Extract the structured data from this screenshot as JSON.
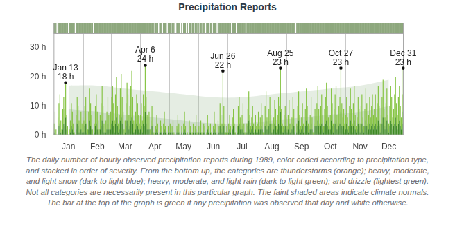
{
  "chart_data": {
    "type": "bar",
    "title": "Precipitation Reports",
    "caption": "The daily number of hourly observed precipitation reports during 1989, color coded according to precipitation type, and stacked in order of severity. From the bottom up, the categories are thunderstorms (orange); heavy, moderate, and light snow (dark to light blue); heavy, moderate, and light rain (dark to light green); and drizzle (lightest green). Not all categories are necessarily present in this particular graph. The faint shaded areas indicate climate normals. The bar at the top of the graph is green if any precipitation was observed that day and white otherwise.",
    "categories": [
      null,
      null,
      null,
      null,
      null,
      null,
      null,
      null,
      null,
      null,
      null,
      null,
      null,
      null,
      null,
      "Jan",
      null,
      null,
      null,
      null,
      null,
      null,
      null,
      null,
      null,
      null,
      null,
      null,
      null,
      null,
      null,
      null,
      null,
      null,
      null,
      null,
      null,
      null,
      null,
      null,
      null,
      null,
      null,
      null,
      null,
      "Feb",
      null,
      null,
      null,
      null,
      null,
      null,
      null,
      null,
      null,
      null,
      null,
      null,
      null,
      null,
      null,
      null,
      null,
      null,
      null,
      null,
      null,
      null,
      null,
      null,
      null,
      null,
      null,
      null,
      "Mar",
      null,
      null,
      null,
      null,
      null,
      null,
      null,
      null,
      null,
      null,
      null,
      null,
      null,
      null,
      null,
      null,
      null,
      null,
      null,
      null,
      null,
      null,
      null,
      null,
      null,
      null,
      null,
      null,
      null,
      null,
      "Apr",
      null,
      null,
      null,
      null,
      null,
      null,
      null,
      null,
      null,
      null,
      null,
      null,
      null,
      null,
      null,
      null,
      null,
      null,
      null,
      null,
      null,
      null,
      null,
      null,
      null,
      null,
      null,
      null,
      null,
      "May",
      null,
      null,
      null,
      null,
      null,
      null,
      null,
      null,
      null,
      null,
      null,
      null,
      null,
      null,
      null,
      null,
      null,
      null,
      null,
      null,
      null,
      null,
      null,
      null,
      null,
      null,
      null,
      null,
      null,
      null,
      "Jun",
      null,
      null,
      null,
      null,
      null,
      null,
      null,
      null,
      null,
      null,
      null,
      null,
      null,
      null,
      null,
      null,
      null,
      null,
      null,
      null,
      null,
      null,
      null,
      null,
      null,
      null,
      null,
      null,
      null,
      "Jul",
      null,
      null,
      null,
      null,
      null,
      null,
      null,
      null,
      null,
      null,
      null,
      null,
      null,
      null,
      null,
      null,
      null,
      null,
      null,
      null,
      null,
      null,
      null,
      null,
      null,
      null,
      null,
      null,
      null,
      null,
      "Aug",
      null,
      null,
      null,
      null,
      null,
      null,
      null,
      null,
      null,
      null,
      null,
      null,
      null,
      null,
      null,
      null,
      null,
      null,
      null,
      null,
      null,
      null,
      null,
      null,
      null,
      null,
      null,
      null,
      null,
      null,
      "Sep",
      null,
      null,
      null,
      null,
      null,
      null,
      null,
      null,
      null,
      null,
      null,
      null,
      null,
      null,
      null,
      null,
      null,
      null,
      null,
      null,
      null,
      null,
      null,
      null,
      null,
      null,
      null,
      null,
      null,
      "Oct",
      null,
      null,
      null,
      null,
      null,
      null,
      null,
      null,
      null,
      null,
      null,
      null,
      null,
      null,
      null,
      null,
      null,
      null,
      null,
      null,
      null,
      null,
      null,
      null,
      null,
      null,
      null,
      null,
      null,
      null,
      "Nov",
      null,
      null,
      null,
      null,
      null,
      null,
      null,
      null,
      null,
      null,
      null,
      null,
      null,
      null,
      null,
      null,
      null,
      null,
      null,
      null,
      null,
      null,
      null,
      null,
      null,
      null,
      null,
      null,
      null,
      "Dec",
      null,
      null,
      null,
      null,
      null,
      null,
      null,
      null,
      null,
      null,
      null,
      null,
      null,
      null,
      null
    ],
    "series": [
      {
        "color": "#3d8a22",
        "values": [
          1,
          2,
          0,
          0,
          1,
          3,
          4,
          1,
          0,
          2,
          4,
          3,
          6,
          2,
          0,
          0,
          0,
          1,
          3,
          2,
          1,
          0,
          0,
          2,
          4,
          3,
          1,
          0,
          2,
          1,
          1,
          1,
          3,
          4,
          1,
          0,
          2,
          5,
          3,
          2,
          0,
          0,
          1,
          3,
          4,
          2,
          1,
          0,
          2,
          3,
          5,
          3,
          1,
          0,
          1,
          2,
          4,
          2,
          0,
          2,
          4,
          5,
          3,
          1,
          4,
          6,
          3,
          1,
          2,
          5,
          6,
          4,
          2,
          0,
          1,
          3,
          5,
          4,
          2,
          3,
          5,
          6,
          4,
          1,
          1,
          2,
          4,
          3,
          2,
          1,
          2,
          3,
          1,
          4,
          3,
          8,
          4,
          2,
          1,
          2,
          0,
          1,
          3,
          1,
          0,
          0,
          1,
          2,
          1,
          0,
          0,
          1,
          1,
          0,
          1,
          2,
          1,
          0,
          0,
          1,
          0,
          1,
          0,
          1,
          1,
          0,
          0,
          0,
          1,
          2,
          1,
          0,
          0,
          1,
          0,
          1,
          2,
          1,
          0,
          0,
          0,
          1,
          1,
          0,
          0,
          1,
          0,
          1,
          2,
          0,
          0,
          1,
          0,
          1,
          0,
          0,
          1,
          1,
          0,
          0,
          2,
          1,
          0,
          1,
          0,
          0,
          1,
          2,
          1,
          0,
          0,
          1,
          1,
          3,
          2,
          1,
          7,
          3,
          1,
          0,
          1,
          0,
          1,
          2,
          1,
          0,
          2,
          3,
          1,
          0,
          0,
          1,
          3,
          4,
          2,
          1,
          2,
          3,
          1,
          0,
          0,
          1,
          3,
          5,
          2,
          1,
          2,
          3,
          1,
          0,
          2,
          1,
          1,
          2,
          1,
          2,
          3,
          2,
          0,
          1,
          3,
          5,
          2,
          1,
          3,
          4,
          2,
          1,
          0,
          2,
          4,
          3,
          1,
          2,
          4,
          3,
          8,
          3,
          1,
          1,
          2,
          3,
          2,
          1,
          2,
          4,
          1,
          0,
          2,
          4,
          3,
          1,
          0,
          1,
          3,
          5,
          2,
          1,
          2,
          3,
          1,
          0,
          3,
          5,
          3,
          1,
          1,
          2,
          4,
          2,
          0,
          1,
          3,
          2,
          3,
          5,
          3,
          1,
          3,
          4,
          2,
          1,
          3,
          4,
          5,
          3,
          2,
          1,
          2,
          5,
          3,
          1,
          3,
          4,
          5,
          2,
          1,
          3,
          4,
          8,
          3,
          2,
          3,
          1,
          2,
          4,
          2,
          1,
          3,
          5,
          3,
          1,
          3,
          5,
          2,
          1,
          2,
          4,
          3,
          1,
          3,
          4,
          2,
          1,
          3,
          5,
          3,
          1,
          2,
          4,
          2,
          3,
          4,
          2,
          3,
          4,
          2,
          3,
          5,
          3,
          1,
          2,
          4,
          6,
          3,
          2,
          3,
          5,
          2,
          1,
          3,
          5,
          4,
          2,
          3,
          4,
          6,
          3,
          2,
          4,
          5,
          3,
          2,
          4,
          8
        ]
      },
      {
        "color": "#86c443",
        "values": [
          3,
          6,
          2,
          0,
          5,
          8,
          10,
          4,
          2,
          7,
          9,
          6,
          12,
          5,
          3,
          0,
          2,
          4,
          8,
          6,
          3,
          1,
          0,
          5,
          9,
          7,
          4,
          2,
          6,
          3,
          5,
          4,
          7,
          9,
          3,
          2,
          6,
          11,
          8,
          5,
          2,
          0,
          3,
          7,
          10,
          6,
          4,
          2,
          5,
          8,
          12,
          7,
          3,
          1,
          4,
          6,
          9,
          5,
          2,
          6,
          9,
          12,
          8,
          4,
          10,
          14,
          7,
          3,
          5,
          11,
          15,
          9,
          6,
          2,
          4,
          8,
          13,
          10,
          5,
          7,
          12,
          16,
          9,
          4,
          3,
          6,
          10,
          8,
          5,
          3,
          5,
          8,
          4,
          10,
          7,
          16,
          9,
          5,
          3,
          6,
          2,
          4,
          7,
          3,
          1,
          0,
          2,
          5,
          3,
          0,
          1,
          4,
          2,
          0,
          3,
          6,
          2,
          1,
          0,
          2,
          1,
          3,
          0,
          2,
          4,
          1,
          0,
          0,
          2,
          5,
          3,
          1,
          0,
          2,
          0,
          3,
          6,
          2,
          0,
          1,
          0,
          4,
          2,
          0,
          1,
          3,
          0,
          2,
          5,
          1,
          0,
          2,
          0,
          4,
          1,
          0,
          3,
          2,
          0,
          1,
          5,
          2,
          0,
          3,
          1,
          0,
          2,
          6,
          3,
          1,
          0,
          4,
          2,
          8,
          5,
          3,
          15,
          7,
          3,
          1,
          2,
          1,
          3,
          5,
          2,
          0,
          4,
          6,
          3,
          1,
          0,
          2,
          7,
          9,
          4,
          2,
          5,
          8,
          3,
          1,
          0,
          3,
          6,
          10,
          5,
          2,
          4,
          7,
          3,
          1,
          5,
          2,
          3,
          6,
          2,
          4,
          8,
          5,
          1,
          3,
          7,
          10,
          4,
          2,
          6,
          9,
          5,
          3,
          1,
          4,
          8,
          6,
          2,
          5,
          9,
          7,
          15,
          6,
          3,
          2,
          5,
          7,
          4,
          2,
          5,
          8,
          3,
          1,
          4,
          9,
          6,
          2,
          0,
          3,
          7,
          10,
          5,
          2,
          4,
          8,
          3,
          1,
          6,
          11,
          7,
          3,
          2,
          5,
          9,
          4,
          1,
          3,
          6,
          4,
          8,
          12,
          6,
          3,
          7,
          10,
          5,
          2,
          6,
          9,
          13,
          7,
          4,
          2,
          5,
          11,
          8,
          3,
          6,
          10,
          12,
          5,
          3,
          7,
          9,
          15,
          8,
          4,
          6,
          3,
          5,
          9,
          4,
          2,
          7,
          11,
          6,
          3,
          8,
          12,
          5,
          2,
          4,
          9,
          6,
          3,
          7,
          10,
          4,
          2,
          6,
          11,
          8,
          3,
          5,
          9,
          4,
          7,
          10,
          5,
          6,
          10,
          4,
          8,
          12,
          7,
          3,
          5,
          9,
          13,
          6,
          4,
          8,
          11,
          5,
          3,
          7,
          12,
          9,
          4,
          6,
          10,
          14,
          8,
          5,
          9,
          12,
          7,
          4,
          10,
          15
        ]
      }
    ],
    "stacked": true,
    "ylim": [
      0,
      35
    ],
    "yticks": [
      {
        "value": 0,
        "label": "0 h"
      },
      {
        "value": 10,
        "label": "10 h"
      },
      {
        "value": 20,
        "label": "20 h"
      },
      {
        "value": 30,
        "label": "30 h"
      }
    ],
    "grid": true,
    "climate_normals": [
      {
        "color": "rgba(160,190,155,0.28)",
        "values": [
          17,
          17,
          16,
          15,
          14,
          13,
          13,
          14,
          15,
          16,
          17,
          19
        ]
      },
      {
        "color": "rgba(140,175,135,0.28)",
        "values": [
          9,
          8,
          7,
          6,
          5,
          4,
          4,
          5,
          6,
          7,
          8,
          10
        ]
      }
    ],
    "annotations": [
      {
        "index": 12,
        "date": "Jan 13",
        "value": 18,
        "label": "18 h"
      },
      {
        "index": 95,
        "date": "Apr 6",
        "value": 24,
        "label": "24 h"
      },
      {
        "index": 176,
        "date": "Jun 26",
        "value": 22,
        "label": "22 h"
      },
      {
        "index": 236,
        "date": "Aug 25",
        "value": 23,
        "label": "23 h"
      },
      {
        "index": 299,
        "date": "Oct 27",
        "value": 23,
        "label": "23 h"
      },
      {
        "index": 364,
        "date": "Dec 31",
        "value": 23,
        "label": "23 h"
      }
    ]
  }
}
